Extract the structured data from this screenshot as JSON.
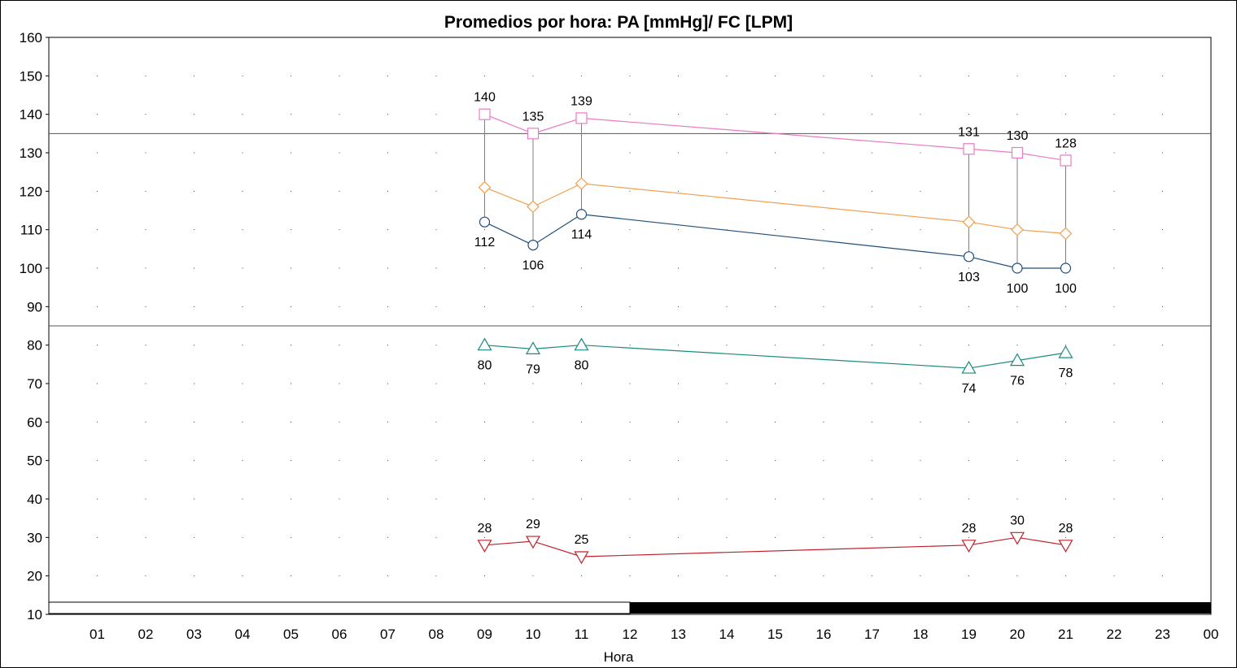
{
  "chart_data": {
    "type": "line",
    "title": "Promedios por hora: PA [mmHg]/ FC [LPM]",
    "xlabel": "Hora",
    "ylabel": "",
    "ylim": [
      10,
      160
    ],
    "yticks": [
      10,
      20,
      30,
      40,
      50,
      60,
      70,
      80,
      90,
      100,
      110,
      120,
      130,
      140,
      150,
      160
    ],
    "categories": [
      "01",
      "02",
      "03",
      "04",
      "05",
      "06",
      "07",
      "08",
      "09",
      "10",
      "11",
      "12",
      "13",
      "14",
      "15",
      "16",
      "17",
      "18",
      "19",
      "20",
      "21",
      "22",
      "23",
      "00"
    ],
    "grid": true,
    "reference_lines": [
      135,
      85
    ],
    "series": [
      {
        "marker": "square",
        "color": "#e87bc3",
        "x": [
          "09",
          "10",
          "11",
          "19",
          "20",
          "21"
        ],
        "values": [
          140,
          135,
          139,
          131,
          130,
          128
        ],
        "labels": [
          "140",
          "135",
          "139",
          "131",
          "130",
          "128"
        ],
        "label_position": "above"
      },
      {
        "marker": "diamond",
        "color": "#f0a050",
        "x": [
          "09",
          "10",
          "11",
          "19",
          "20",
          "21"
        ],
        "values": [
          121,
          116,
          122,
          112,
          110,
          109
        ],
        "labels": [],
        "label_position": "none"
      },
      {
        "marker": "circle",
        "color": "#1f4e79",
        "x": [
          "09",
          "10",
          "11",
          "19",
          "20",
          "21"
        ],
        "values": [
          112,
          106,
          114,
          103,
          100,
          100
        ],
        "labels": [
          "112",
          "106",
          "114",
          "103",
          "100",
          "100"
        ],
        "label_position": "below"
      },
      {
        "marker": "triangle-up",
        "color": "#1a8a80",
        "x": [
          "09",
          "10",
          "11",
          "19",
          "20",
          "21"
        ],
        "values": [
          80,
          79,
          80,
          74,
          76,
          78
        ],
        "labels": [
          "80",
          "79",
          "80",
          "74",
          "76",
          "78"
        ],
        "label_position": "below"
      },
      {
        "marker": "triangle-down",
        "color": "#c0202a",
        "x": [
          "09",
          "10",
          "11",
          "19",
          "20",
          "21"
        ],
        "values": [
          28,
          29,
          25,
          28,
          30,
          28
        ],
        "labels": [
          "28",
          "29",
          "25",
          "28",
          "30",
          "28"
        ],
        "label_position": "above"
      }
    ],
    "connector_color": "#808080",
    "day_night_bar": {
      "day_until_hour": "12",
      "day_color": "#ffffff",
      "night_color": "#000000"
    }
  }
}
